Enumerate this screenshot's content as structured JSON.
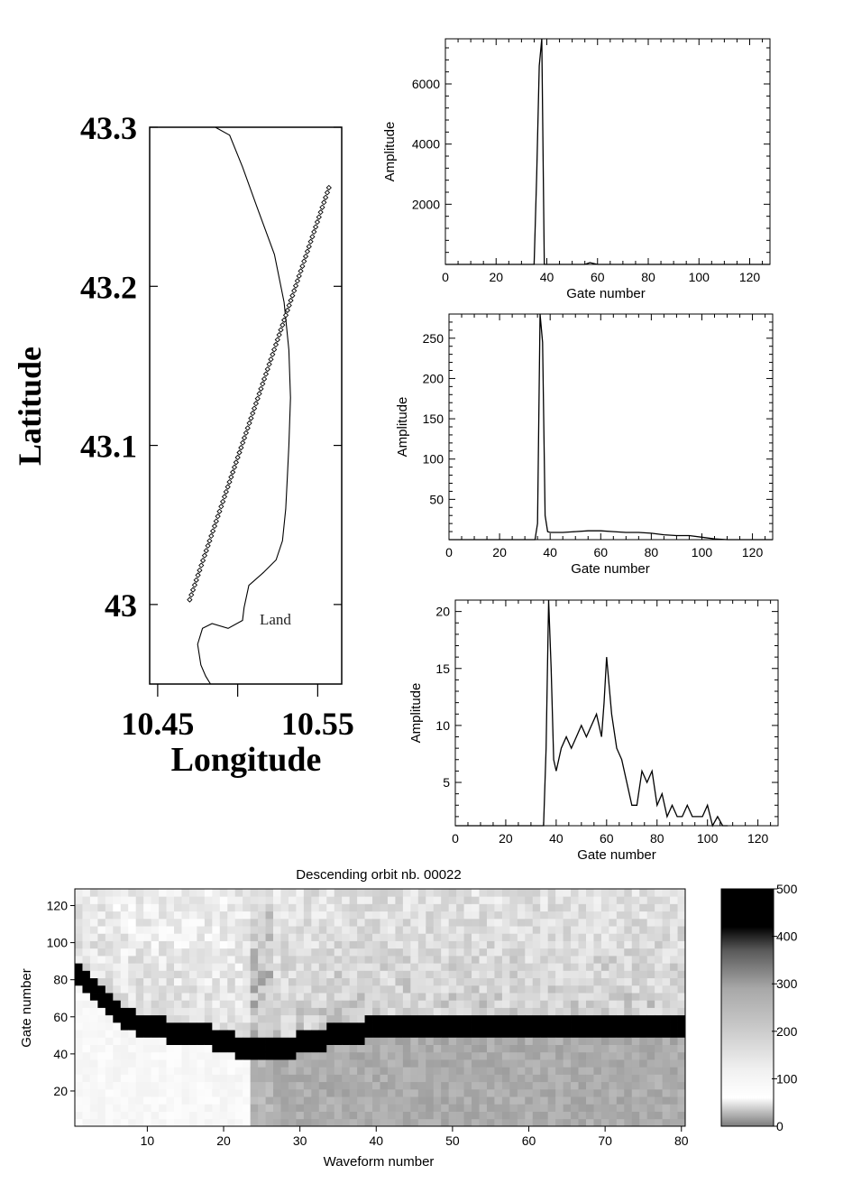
{
  "chart_data": [
    {
      "id": "map",
      "type": "scatter",
      "title": "",
      "xlabel": "Longitude",
      "ylabel": "Latitude",
      "xlim": [
        10.445,
        10.565
      ],
      "ylim": [
        42.95,
        43.3
      ],
      "xticks": [
        "10.45",
        "10.55"
      ],
      "yticks": [
        "43.3",
        "43.2",
        "43.1",
        "43"
      ],
      "annotation": "Land",
      "track_start": [
        10.47,
        43.003
      ],
      "track_end": [
        10.557,
        43.262
      ],
      "track_points": 85,
      "coastline": [
        [
          10.486,
          43.3
        ],
        [
          10.495,
          43.295
        ],
        [
          10.503,
          43.275
        ],
        [
          10.512,
          43.25
        ],
        [
          10.523,
          43.22
        ],
        [
          10.529,
          43.19
        ],
        [
          10.532,
          43.16
        ],
        [
          10.533,
          43.13
        ],
        [
          10.532,
          43.1
        ],
        [
          10.531,
          43.08
        ],
        [
          10.53,
          43.06
        ],
        [
          10.528,
          43.04
        ],
        [
          10.524,
          43.028
        ],
        [
          10.516,
          43.02
        ],
        [
          10.507,
          43.012
        ],
        [
          10.504,
          42.998
        ],
        [
          10.503,
          42.99
        ],
        [
          10.494,
          42.985
        ],
        [
          10.484,
          42.988
        ],
        [
          10.478,
          42.985
        ],
        [
          10.475,
          42.975
        ],
        [
          10.477,
          42.962
        ],
        [
          10.48,
          42.955
        ],
        [
          10.483,
          42.95
        ]
      ]
    },
    {
      "id": "waveform-1",
      "type": "line",
      "xlabel": "Gate number",
      "ylabel": "Amplitude",
      "xlim": [
        0,
        128
      ],
      "ylim": [
        0,
        7500
      ],
      "xticks": [
        0,
        20,
        40,
        60,
        80,
        100,
        120
      ],
      "yticks": [
        2000,
        4000,
        6000
      ],
      "x": [
        0,
        34,
        35,
        36,
        37,
        38,
        39,
        40,
        50,
        55,
        57,
        60,
        128
      ],
      "y": [
        0,
        0,
        0,
        3000,
        6600,
        7500,
        0,
        0,
        0,
        0,
        60,
        0,
        0
      ]
    },
    {
      "id": "waveform-2",
      "type": "line",
      "xlabel": "Gate number",
      "ylabel": "Amplitude",
      "xlim": [
        0,
        128
      ],
      "ylim": [
        0,
        280
      ],
      "xticks": [
        0,
        20,
        40,
        60,
        80,
        100,
        120
      ],
      "yticks": [
        50,
        100,
        150,
        200,
        250
      ],
      "x": [
        0,
        34,
        35,
        36,
        37,
        38,
        39,
        40,
        45,
        50,
        55,
        60,
        65,
        70,
        75,
        80,
        85,
        90,
        95,
        100,
        105,
        110,
        128
      ],
      "y": [
        0,
        0,
        20,
        280,
        245,
        30,
        10,
        9,
        9,
        10,
        11,
        11,
        10,
        9,
        9,
        8,
        6,
        5,
        5,
        3,
        1,
        0,
        0
      ]
    },
    {
      "id": "waveform-3",
      "type": "line",
      "xlabel": "Gate number",
      "ylabel": "Amplitude",
      "xlim": [
        0,
        128
      ],
      "ylim": [
        1.2,
        21
      ],
      "xticks": [
        0,
        20,
        40,
        60,
        80,
        100,
        120
      ],
      "yticks": [
        5,
        10,
        15,
        20
      ],
      "x": [
        0,
        34,
        35,
        36,
        37,
        38,
        39,
        40,
        42,
        44,
        46,
        48,
        50,
        52,
        54,
        56,
        58,
        59,
        60,
        62,
        64,
        66,
        68,
        70,
        72,
        74,
        76,
        78,
        80,
        82,
        84,
        86,
        88,
        90,
        92,
        94,
        96,
        98,
        100,
        102,
        104,
        106,
        108
      ],
      "y": [
        1,
        1,
        1,
        8,
        21,
        15,
        7,
        6,
        8,
        9,
        8,
        9,
        10,
        9,
        10,
        11,
        9,
        12,
        16,
        11,
        8,
        7,
        5,
        3,
        3,
        6,
        5,
        6,
        3,
        4,
        2,
        3,
        2,
        2,
        3,
        2,
        2,
        2,
        3,
        1,
        2,
        1,
        1
      ]
    },
    {
      "id": "radargram",
      "type": "heatmap",
      "title": "Descending orbit nb. 00022",
      "xlabel": "Waveform number",
      "ylabel": "Gate number",
      "xlim": [
        1,
        80
      ],
      "ylim": [
        1,
        128
      ],
      "xticks": [
        10,
        20,
        30,
        40,
        50,
        60,
        70,
        80
      ],
      "yticks": [
        20,
        40,
        60,
        80,
        100,
        120
      ],
      "colorbar_range": [
        0,
        500
      ],
      "colorbar_ticks": [
        0,
        100,
        200,
        300,
        400,
        500
      ],
      "leading_edge_gate": [
        [
          1,
          78
        ],
        [
          3,
          68
        ],
        [
          6,
          57
        ],
        [
          10,
          49
        ],
        [
          15,
          45
        ],
        [
          20,
          42
        ],
        [
          22,
          39
        ],
        [
          24,
          37
        ],
        [
          26,
          37
        ],
        [
          28,
          38
        ],
        [
          30,
          40
        ],
        [
          33,
          43
        ],
        [
          36,
          46
        ],
        [
          40,
          48
        ],
        [
          50,
          48
        ],
        [
          60,
          48
        ],
        [
          70,
          48
        ],
        [
          80,
          48
        ]
      ],
      "rows": [
        {
          "wf_from": 1,
          "wf_to": 23,
          "level_above_edge": 150,
          "level_below_edge": 80
        },
        {
          "wf_from": 24,
          "wf_to": 26,
          "level_above_edge": 230,
          "level_below_edge": 230
        },
        {
          "wf_from": 27,
          "wf_to": 80,
          "level_above_edge": 190,
          "level_below_edge": 240
        }
      ]
    }
  ]
}
